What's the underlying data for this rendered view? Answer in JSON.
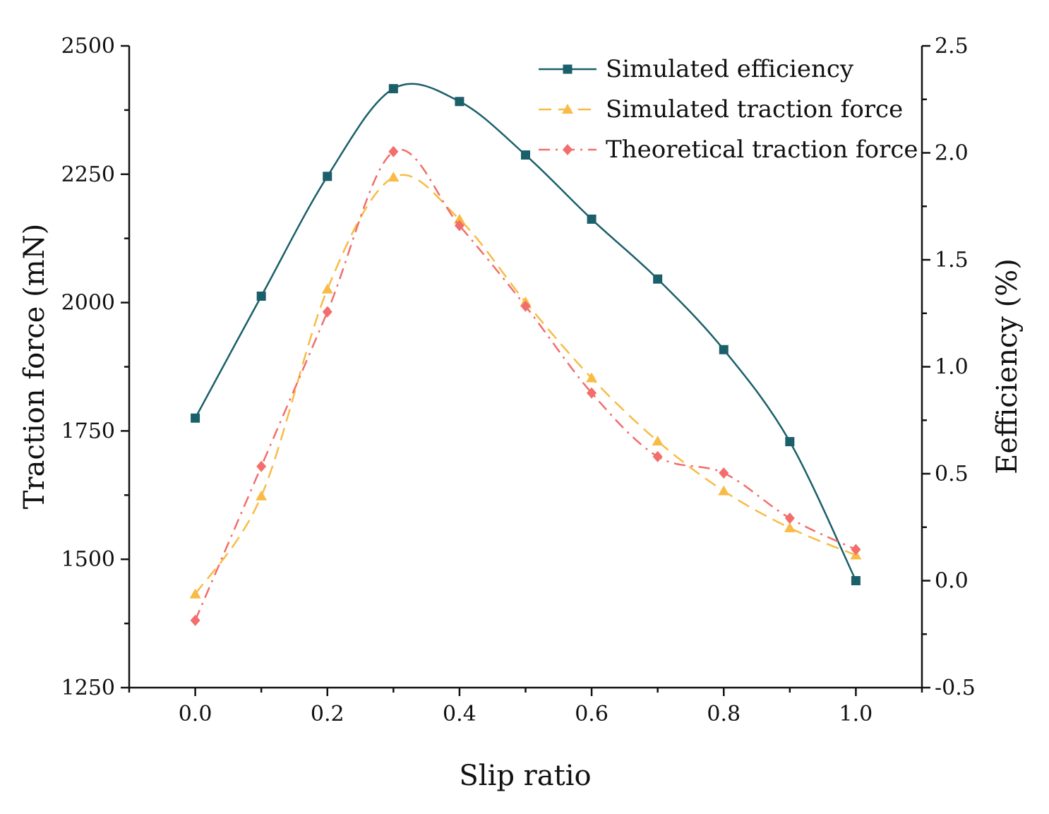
{
  "chart_data": {
    "type": "line",
    "title": "",
    "xlabel": "Slip ratio",
    "ylabel_left": "Traction force (mN)",
    "ylabel_right": "Eefficiency (%)",
    "x": [
      0.0,
      0.1,
      0.2,
      0.3,
      0.4,
      0.5,
      0.6,
      0.7,
      0.8,
      0.9,
      1.0
    ],
    "xlim": [
      -0.1,
      1.1
    ],
    "ylim_left": [
      1250,
      2500
    ],
    "ylim_right": [
      -0.5,
      2.5
    ],
    "x_ticks": [
      "0.0",
      "0.2",
      "0.4",
      "0.6",
      "0.8",
      "1.0"
    ],
    "y_left_ticks": [
      "1250",
      "1500",
      "1750",
      "2000",
      "2250",
      "2500"
    ],
    "y_right_ticks": [
      "-0.5",
      "0.0",
      "0.5",
      "1.0",
      "1.5",
      "2.0",
      "2.5"
    ],
    "grid": false,
    "legend_position": "top-right",
    "series": [
      {
        "name": "Simulated efficiency",
        "axis": "right",
        "color": "#1a5f6a",
        "marker": "square",
        "line_style": "solid",
        "values": [
          0.76,
          1.33,
          1.89,
          2.3,
          2.24,
          1.99,
          1.69,
          1.41,
          1.08,
          0.65,
          0.0
        ]
      },
      {
        "name": "Simulated traction force",
        "axis": "left",
        "color": "#f8bb45",
        "marker": "triangle",
        "line_style": "dashed",
        "values": [
          1432,
          1623,
          2026,
          2244,
          2162,
          2001,
          1853,
          1730,
          1633,
          1561,
          1508
        ]
      },
      {
        "name": "Theoretical traction force",
        "axis": "left",
        "color": "#f26d6b",
        "marker": "diamond",
        "line_style": "dashdot",
        "values": [
          1381,
          1681,
          1982,
          2294,
          2150,
          1993,
          1824,
          1700,
          1668,
          1580,
          1519
        ]
      }
    ]
  }
}
